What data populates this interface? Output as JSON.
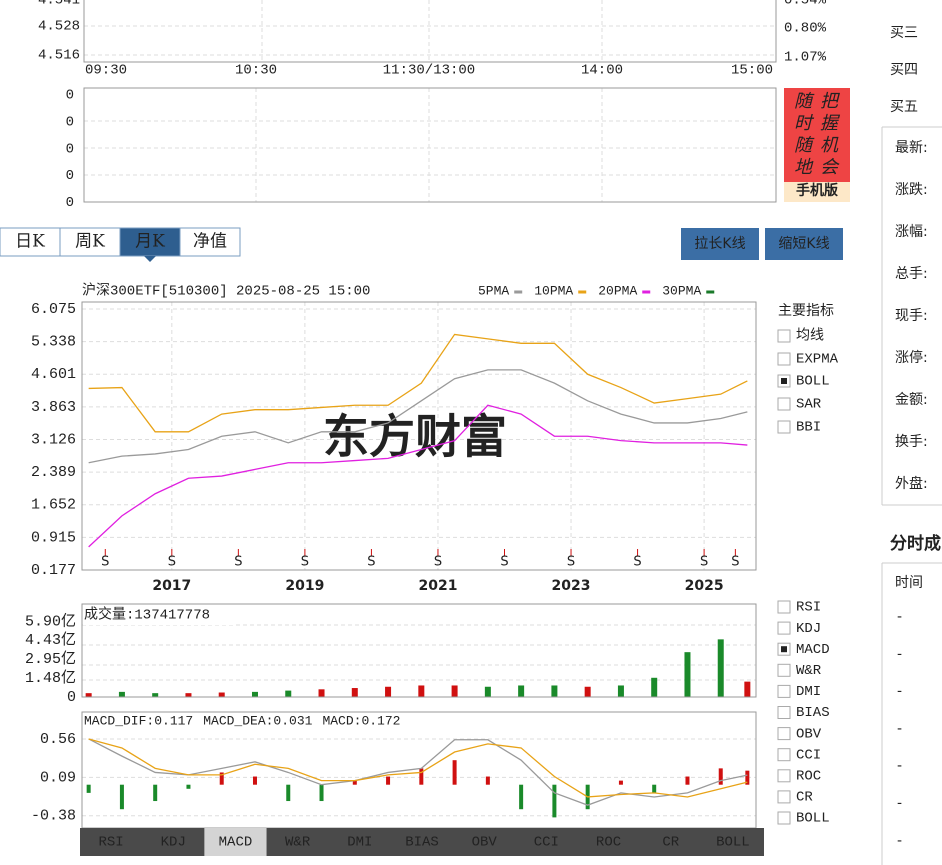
{
  "intraday": {
    "price_labels": [
      "4.541",
      "4.528",
      "4.516"
    ],
    "pct_labels": [
      "0.54%",
      "0.80%",
      "1.07%"
    ],
    "time_labels": [
      "09:30",
      "10:30",
      "11:30/13:00",
      "14:00",
      "15:00"
    ],
    "volume_labels": [
      "0",
      "0",
      "0",
      "0",
      "0"
    ]
  },
  "ad": {
    "columns": [
      "随时随地",
      "把握机会"
    ],
    "button": "手机版"
  },
  "tabs": {
    "items": [
      "日K",
      "周K",
      "月K",
      "净值"
    ],
    "active": 2
  },
  "buttons": [
    "拉长K线",
    "缩短K线"
  ],
  "chart_data": [
    {
      "type": "line",
      "title": "沪深300ETF[510300] 2025-08-25 15:00",
      "watermark": "东方财富",
      "x": [
        2015.75,
        2016.25,
        2016.75,
        2017.25,
        2017.75,
        2018.25,
        2018.75,
        2019.25,
        2019.75,
        2020.25,
        2020.75,
        2021.25,
        2021.75,
        2022.25,
        2022.75,
        2023.25,
        2023.75,
        2024.25,
        2024.75,
        2025.25,
        2025.65
      ],
      "xlim": [
        2015.65,
        2025.78
      ],
      "xticks": [
        2017,
        2019,
        2021,
        2023,
        2025
      ],
      "ylim": [
        0.177,
        6.233
      ],
      "yticks": [
        6.075,
        5.338,
        4.601,
        3.863,
        3.126,
        2.389,
        1.652,
        0.915,
        0.177
      ],
      "grid": true,
      "series": [
        {
          "name": "5PMA",
          "color": "#9a9a9a",
          "values": [
            2.6,
            2.75,
            2.8,
            2.9,
            3.2,
            3.3,
            3.05,
            3.3,
            3.3,
            3.5,
            4.0,
            4.5,
            4.7,
            4.7,
            4.4,
            4.0,
            3.7,
            3.5,
            3.5,
            3.6,
            3.75
          ]
        },
        {
          "name": "10PMA",
          "color": "#e8a317",
          "values": [
            4.28,
            4.3,
            3.3,
            3.3,
            3.7,
            3.8,
            3.8,
            3.85,
            3.9,
            3.9,
            4.4,
            5.5,
            5.4,
            5.3,
            5.3,
            4.6,
            4.3,
            3.95,
            4.05,
            4.15,
            4.45
          ]
        },
        {
          "name": "20PMA",
          "color": "#e020e0",
          "values": [
            0.7,
            1.4,
            1.9,
            2.25,
            2.3,
            2.45,
            2.6,
            2.6,
            2.65,
            2.7,
            2.9,
            3.1,
            3.9,
            3.7,
            3.2,
            3.2,
            3.1,
            3.05,
            3.05,
            3.05,
            3.0
          ]
        },
        {
          "name": "30PMA",
          "color": "#1a7a2a",
          "values": [
            null,
            null,
            null,
            null,
            null,
            null,
            null,
            null,
            null,
            null,
            null,
            null,
            null,
            null,
            null,
            null,
            null,
            null,
            null,
            null,
            null
          ]
        }
      ],
      "markers": {
        "label": "S",
        "color": "#d01010",
        "x": [
          2016,
          2017,
          2018,
          2019,
          2020,
          2021,
          2022,
          2023,
          2024,
          2025,
          2025.47
        ]
      }
    },
    {
      "type": "bar",
      "title": "成交量:137417778",
      "x": [
        2015.75,
        2016.25,
        2016.75,
        2017.25,
        2017.75,
        2018.25,
        2018.75,
        2019.25,
        2019.75,
        2020.25,
        2020.75,
        2021.25,
        2021.75,
        2022.25,
        2022.75,
        2023.25,
        2023.75,
        2024.25,
        2024.75,
        2025.25,
        2025.65
      ],
      "xlim": [
        2015.65,
        2025.78
      ],
      "ylim": [
        0,
        7.26
      ],
      "yticks": [
        {
          "value": 5.9,
          "label": "5.90亿"
        },
        {
          "value": 4.43,
          "label": "4.43亿"
        },
        {
          "value": 2.95,
          "label": "2.95亿"
        },
        {
          "value": 1.48,
          "label": "1.48亿"
        },
        0
      ],
      "values": [
        0.3,
        0.4,
        0.3,
        0.3,
        0.35,
        0.4,
        0.5,
        0.6,
        0.7,
        0.8,
        0.9,
        0.9,
        0.8,
        0.9,
        0.9,
        0.8,
        0.9,
        1.5,
        3.5,
        4.5,
        1.2
      ],
      "colors": [
        "#d01010",
        "#1a8a2a",
        "#1a8a2a",
        "#d01010",
        "#d01010",
        "#1a8a2a",
        "#1a8a2a",
        "#d01010",
        "#d01010",
        "#d01010",
        "#d01010",
        "#d01010",
        "#1a8a2a",
        "#1a8a2a",
        "#1a8a2a",
        "#d01010",
        "#1a8a2a",
        "#1a8a2a",
        "#1a8a2a",
        "#1a8a2a",
        "#d01010"
      ]
    },
    {
      "type": "macd",
      "labels": [
        {
          "text": "MACD_DIF:0.117",
          "color": "#9a9a9a"
        },
        {
          "text": "MACD_DEA:0.031",
          "color": "#e8a317"
        },
        {
          "text": "MACD:0.172",
          "color": "#e020e0"
        }
      ],
      "x": [
        2015.75,
        2016.25,
        2016.75,
        2017.25,
        2017.75,
        2018.25,
        2018.75,
        2019.25,
        2019.75,
        2020.25,
        2020.75,
        2021.25,
        2021.75,
        2022.25,
        2022.75,
        2023.25,
        2023.75,
        2024.25,
        2024.75,
        2025.25,
        2025.65
      ],
      "xlim": [
        2015.65,
        2025.78
      ],
      "ylim": [
        -0.53,
        0.89
      ],
      "yticks": [
        0.56,
        0.09,
        -0.38
      ],
      "series": [
        {
          "color": "#9a9a9a",
          "values": [
            0.56,
            0.35,
            0.15,
            0.12,
            0.2,
            0.28,
            0.15,
            0.0,
            0.05,
            0.15,
            0.2,
            0.55,
            0.55,
            0.3,
            -0.1,
            -0.25,
            -0.1,
            -0.15,
            -0.1,
            0.05,
            0.117
          ]
        },
        {
          "color": "#e8a317",
          "values": [
            0.56,
            0.45,
            0.2,
            0.12,
            0.12,
            0.25,
            0.2,
            0.05,
            0.05,
            0.12,
            0.15,
            0.4,
            0.5,
            0.45,
            0.1,
            -0.15,
            -0.12,
            -0.1,
            -0.15,
            -0.05,
            0.031
          ]
        }
      ],
      "histogram": [
        -0.1,
        -0.3,
        -0.2,
        -0.05,
        0.15,
        0.1,
        -0.2,
        -0.2,
        0.05,
        0.1,
        0.2,
        0.3,
        0.1,
        -0.3,
        -0.4,
        -0.3,
        0.05,
        -0.1,
        0.1,
        0.2,
        0.172
      ],
      "up_color": "#d01010",
      "down_color": "#1a8a2a"
    }
  ],
  "main_indicators": {
    "title": "主要指标",
    "items": [
      "均线",
      "EXPMA",
      "BOLL",
      "SAR",
      "BBI"
    ],
    "checked": 2
  },
  "sub_indicators": {
    "items": [
      "RSI",
      "KDJ",
      "MACD",
      "W&R",
      "DMI",
      "BIAS",
      "OBV",
      "CCI",
      "ROC",
      "CR",
      "BOLL"
    ],
    "checked": 2
  },
  "bottom_tabs": {
    "items": [
      "RSI",
      "KDJ",
      "MACD",
      "W&R",
      "DMI",
      "BIAS",
      "OBV",
      "CCI",
      "ROC",
      "CR",
      "BOLL"
    ],
    "active": 2
  },
  "quote_panel": {
    "bids": [
      "买三",
      "买四",
      "买五"
    ],
    "fields": [
      "最新:",
      "涨跌:",
      "涨幅:",
      "总手:",
      "现手:",
      "涨停:",
      "金额:",
      "换手:",
      "外盘:"
    ],
    "section_title": "分时成",
    "column": "时间",
    "rows": [
      "-",
      "-",
      "-",
      "-",
      "-",
      "-",
      "-"
    ]
  }
}
